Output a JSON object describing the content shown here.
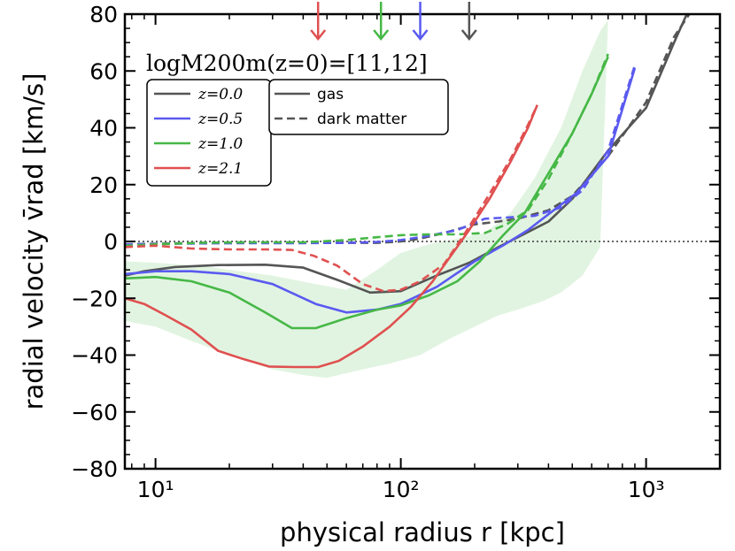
{
  "chart_data": {
    "type": "line",
    "title": "logM200m(z=0)=[11,12]",
    "xlabel": "physical radius r [kpc]",
    "ylabel": "radial velocity v̄rad [km/s]",
    "xscale": "log",
    "xlim": [
      7.5,
      2000
    ],
    "ylim": [
      -80,
      80
    ],
    "xticks": [
      10,
      100,
      1000
    ],
    "xtick_labels": [
      "10¹",
      "10²",
      "10³"
    ],
    "yticks": [
      -80,
      -60,
      -40,
      -20,
      0,
      20,
      40,
      60,
      80
    ],
    "ytick_labels": [
      "−80",
      "−60",
      "−40",
      "−20",
      "0",
      "20",
      "40",
      "60",
      "80"
    ],
    "zero_line": true,
    "grid": false,
    "legend_position": "top-left",
    "series": [
      {
        "name": "z=0.0",
        "color": "#555555",
        "kind": "gas",
        "x": [
          7.5,
          9,
          12,
          18,
          28,
          40,
          55,
          75,
          100,
          140,
          190,
          250,
          300,
          400,
          500,
          700,
          1000,
          1300,
          1500
        ],
        "y": [
          -12,
          -10.5,
          -9,
          -8.3,
          -8.2,
          -9.2,
          -13.5,
          -18,
          -17.5,
          -12,
          -7.5,
          -2,
          1.5,
          7,
          15,
          32,
          47,
          70,
          82
        ]
      },
      {
        "name": "z=0.0 dark matter",
        "color": "#555555",
        "kind": "dm",
        "x": [
          7.5,
          10,
          15,
          25,
          40,
          60,
          80,
          100,
          120,
          150,
          200,
          250,
          300,
          400,
          500,
          700,
          1000,
          1300,
          1500
        ],
        "y": [
          -1,
          -0.8,
          -0.5,
          -0.3,
          -0.4,
          -0.5,
          -0.5,
          0,
          1,
          3,
          6,
          7,
          8,
          11,
          16,
          30,
          49,
          72,
          80
        ]
      },
      {
        "name": "z=0.5",
        "color": "#5a5af0",
        "kind": "gas",
        "x": [
          7.5,
          10,
          14,
          20,
          30,
          45,
          60,
          80,
          100,
          140,
          200,
          260,
          330,
          420,
          520,
          700,
          900
        ],
        "y": [
          -11.5,
          -10.5,
          -10.5,
          -11.5,
          -15,
          -22,
          -25,
          -24,
          -22,
          -16,
          -7,
          -1.5,
          4,
          11,
          17,
          30,
          61
        ]
      },
      {
        "name": "z=0.5 dark matter",
        "color": "#5a5af0",
        "kind": "dm",
        "x": [
          7.5,
          10,
          15,
          25,
          40,
          60,
          80,
          100,
          130,
          170,
          220,
          280,
          350,
          450,
          550,
          700,
          900
        ],
        "y": [
          -1,
          -0.9,
          -0.7,
          -0.6,
          -0.6,
          -0.5,
          -0.2,
          0.5,
          2,
          4,
          8,
          8.5,
          9,
          12,
          18,
          32,
          62
        ]
      },
      {
        "name": "z=1.0",
        "color": "#46b846",
        "kind": "gas",
        "x": [
          7.5,
          10,
          14,
          20,
          28,
          36,
          45,
          60,
          80,
          100,
          130,
          170,
          210,
          260,
          320,
          400,
          500,
          600,
          700
        ],
        "y": [
          -13,
          -12.5,
          -14,
          -18,
          -25,
          -30.5,
          -30.5,
          -27,
          -24,
          -22.5,
          -19,
          -14,
          -7,
          2,
          10,
          24,
          38,
          52,
          65
        ]
      },
      {
        "name": "z=1.0 dark matter",
        "color": "#46b846",
        "kind": "dm",
        "x": [
          7.5,
          10,
          15,
          25,
          40,
          60,
          80,
          100,
          130,
          170,
          220,
          270,
          330,
          400,
          500,
          600,
          700
        ],
        "y": [
          -1.5,
          -1,
          -0.5,
          -0.3,
          -0.3,
          0.5,
          1.5,
          2.2,
          2.5,
          2.5,
          3,
          6,
          11,
          22,
          38,
          52,
          66
        ]
      },
      {
        "name": "z=2.1",
        "color": "#e05050",
        "kind": "gas",
        "x": [
          7.5,
          9,
          11,
          14,
          18,
          23,
          29,
          37,
          46,
          56,
          70,
          90,
          110,
          135,
          160,
          190,
          230,
          280,
          330,
          360
        ],
        "y": [
          -20,
          -22,
          -26,
          -31,
          -38.5,
          -41.5,
          -44,
          -44.2,
          -44.2,
          -42,
          -37,
          -30,
          -23,
          -14,
          -5,
          4,
          15,
          28,
          40,
          48
        ]
      },
      {
        "name": "z=2.1 dark matter",
        "color": "#e05050",
        "kind": "dm",
        "x": [
          7.5,
          10,
          14,
          20,
          28,
          36,
          44,
          55,
          70,
          85,
          100,
          120,
          150,
          180,
          220,
          280,
          330,
          360
        ],
        "y": [
          -2,
          -1.5,
          -2.5,
          -2.8,
          -2.8,
          -3,
          -5,
          -8.5,
          -15,
          -17.5,
          -17,
          -14,
          -8,
          2,
          14,
          29,
          41,
          48
        ]
      }
    ],
    "band": {
      "color": "#46b846",
      "x": [
        7.5,
        10,
        15,
        20,
        30,
        45,
        60,
        80,
        100,
        130,
        170,
        220,
        280,
        350,
        450,
        550,
        650,
        700,
        650,
        550,
        450,
        380,
        300,
        250,
        200,
        160,
        120,
        90,
        70,
        50,
        40,
        30,
        20,
        14,
        10,
        7.5
      ],
      "upper": "band upper edge follows points in order through x=700",
      "y": [
        -7,
        -7.5,
        -8.5,
        -10,
        -12,
        -15,
        -17,
        -10,
        -4,
        -1,
        1,
        3,
        10,
        22,
        40,
        60,
        74,
        78,
        -2,
        -12,
        -18,
        -21,
        -24,
        -26,
        -30,
        -34,
        -40,
        -43,
        -45,
        -48,
        -47,
        -45,
        -40,
        -35,
        -30,
        -28
      ]
    },
    "arrows": [
      {
        "x": 46,
        "color": "#e05050"
      },
      {
        "x": 83,
        "color": "#46b846"
      },
      {
        "x": 120,
        "color": "#5a5af0"
      },
      {
        "x": 190,
        "color": "#555555"
      }
    ],
    "legend": {
      "redshift_entries": [
        {
          "label": "z=0.0",
          "color": "#555555"
        },
        {
          "label": "z=0.5",
          "color": "#5a5af0"
        },
        {
          "label": "z=1.0",
          "color": "#46b846"
        },
        {
          "label": "z=2.1",
          "color": "#e05050"
        }
      ],
      "style_entries": [
        {
          "label": "gas",
          "style": "solid"
        },
        {
          "label": "dark matter",
          "style": "dashed"
        }
      ]
    }
  }
}
